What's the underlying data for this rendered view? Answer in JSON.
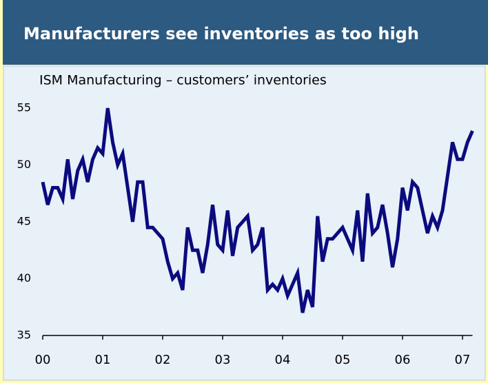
{
  "chart_data": {
    "type": "line",
    "title": "Manufacturers see inventories as too high",
    "subtitle": "ISM Manufacturing – customers’ inventories",
    "color": "#0b0b7e",
    "categories": [
      "00",
      null,
      null,
      null,
      null,
      null,
      null,
      null,
      null,
      null,
      null,
      null,
      "01",
      null,
      null,
      null,
      null,
      null,
      null,
      null,
      null,
      null,
      null,
      null,
      "02",
      null,
      null,
      null,
      null,
      null,
      null,
      null,
      null,
      null,
      null,
      null,
      "03",
      null,
      null,
      null,
      null,
      null,
      null,
      null,
      null,
      null,
      null,
      null,
      "04",
      null,
      null,
      null,
      null,
      null,
      null,
      null,
      null,
      null,
      null,
      null,
      "05",
      null,
      null,
      null,
      null,
      null,
      null,
      null,
      null,
      null,
      null,
      null,
      "06",
      null,
      null,
      null,
      null,
      null,
      null,
      null,
      null,
      null,
      null,
      null,
      "07",
      null,
      null
    ],
    "values": [
      48.5,
      46.5,
      48,
      48,
      47,
      50.5,
      47,
      49.5,
      50.5,
      48.5,
      50.5,
      51.5,
      51,
      55,
      52,
      50,
      51,
      48,
      45,
      48.5,
      48.5,
      44.5,
      44.5,
      44,
      43.5,
      41.5,
      40,
      40.5,
      39,
      44.5,
      42.5,
      42.5,
      40.5,
      43,
      46.5,
      43,
      42.5,
      46,
      42,
      44.5,
      45,
      45.5,
      42.5,
      43,
      44.5,
      39,
      39.5,
      39,
      40,
      38.5,
      39.5,
      40.5,
      37,
      39,
      37.5,
      45.5,
      41.5,
      43.5,
      43.5,
      44,
      44.5,
      43.5,
      42.5,
      46,
      41.5,
      47.5,
      44,
      44.5,
      46.5,
      44,
      41,
      43.5,
      48,
      46,
      48.5,
      48,
      46,
      44,
      45.5,
      44.5,
      46,
      49,
      52,
      50.5,
      50.5,
      52,
      53
    ],
    "ylim": [
      35,
      55
    ],
    "yticks": [
      35,
      40,
      45,
      50,
      55
    ]
  }
}
